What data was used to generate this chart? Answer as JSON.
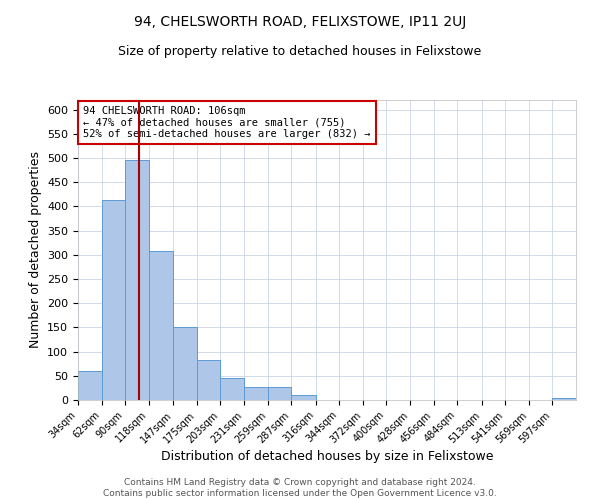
{
  "title": "94, CHELSWORTH ROAD, FELIXSTOWE, IP11 2UJ",
  "subtitle": "Size of property relative to detached houses in Felixstowe",
  "xlabel": "Distribution of detached houses by size in Felixstowe",
  "ylabel": "Number of detached properties",
  "bar_edges": [
    34,
    62,
    90,
    118,
    147,
    175,
    203,
    231,
    259,
    287,
    316,
    344,
    372,
    400,
    428,
    456,
    484,
    513,
    541,
    569,
    597
  ],
  "bar_heights": [
    60,
    413,
    495,
    308,
    150,
    83,
    46,
    26,
    26,
    10,
    0,
    0,
    0,
    0,
    0,
    0,
    0,
    0,
    0,
    0,
    5
  ],
  "bar_color": "#aec6e8",
  "bar_edgecolor": "#5b9bd5",
  "property_line_x": 106,
  "property_line_color": "#aa0000",
  "ylim": [
    0,
    620
  ],
  "yticks": [
    0,
    50,
    100,
    150,
    200,
    250,
    300,
    350,
    400,
    450,
    500,
    550,
    600
  ],
  "annotation_text": "94 CHELSWORTH ROAD: 106sqm\n← 47% of detached houses are smaller (755)\n52% of semi-detached houses are larger (832) →",
  "annotation_box_color": "#ffffff",
  "annotation_box_edgecolor": "#cc0000",
  "xlim_left": 34,
  "xlim_right": 625,
  "ytick_fontsize": 8,
  "xtick_fontsize": 7,
  "ylabel_fontsize": 9,
  "xlabel_fontsize": 9,
  "footer_line1": "Contains HM Land Registry data © Crown copyright and database right 2024.",
  "footer_line2": "Contains public sector information licensed under the Open Government Licence v3.0.",
  "background_color": "#ffffff",
  "grid_color": "#ccd6e8",
  "title_fontsize": 10,
  "subtitle_fontsize": 9,
  "footer_fontsize": 6.5
}
